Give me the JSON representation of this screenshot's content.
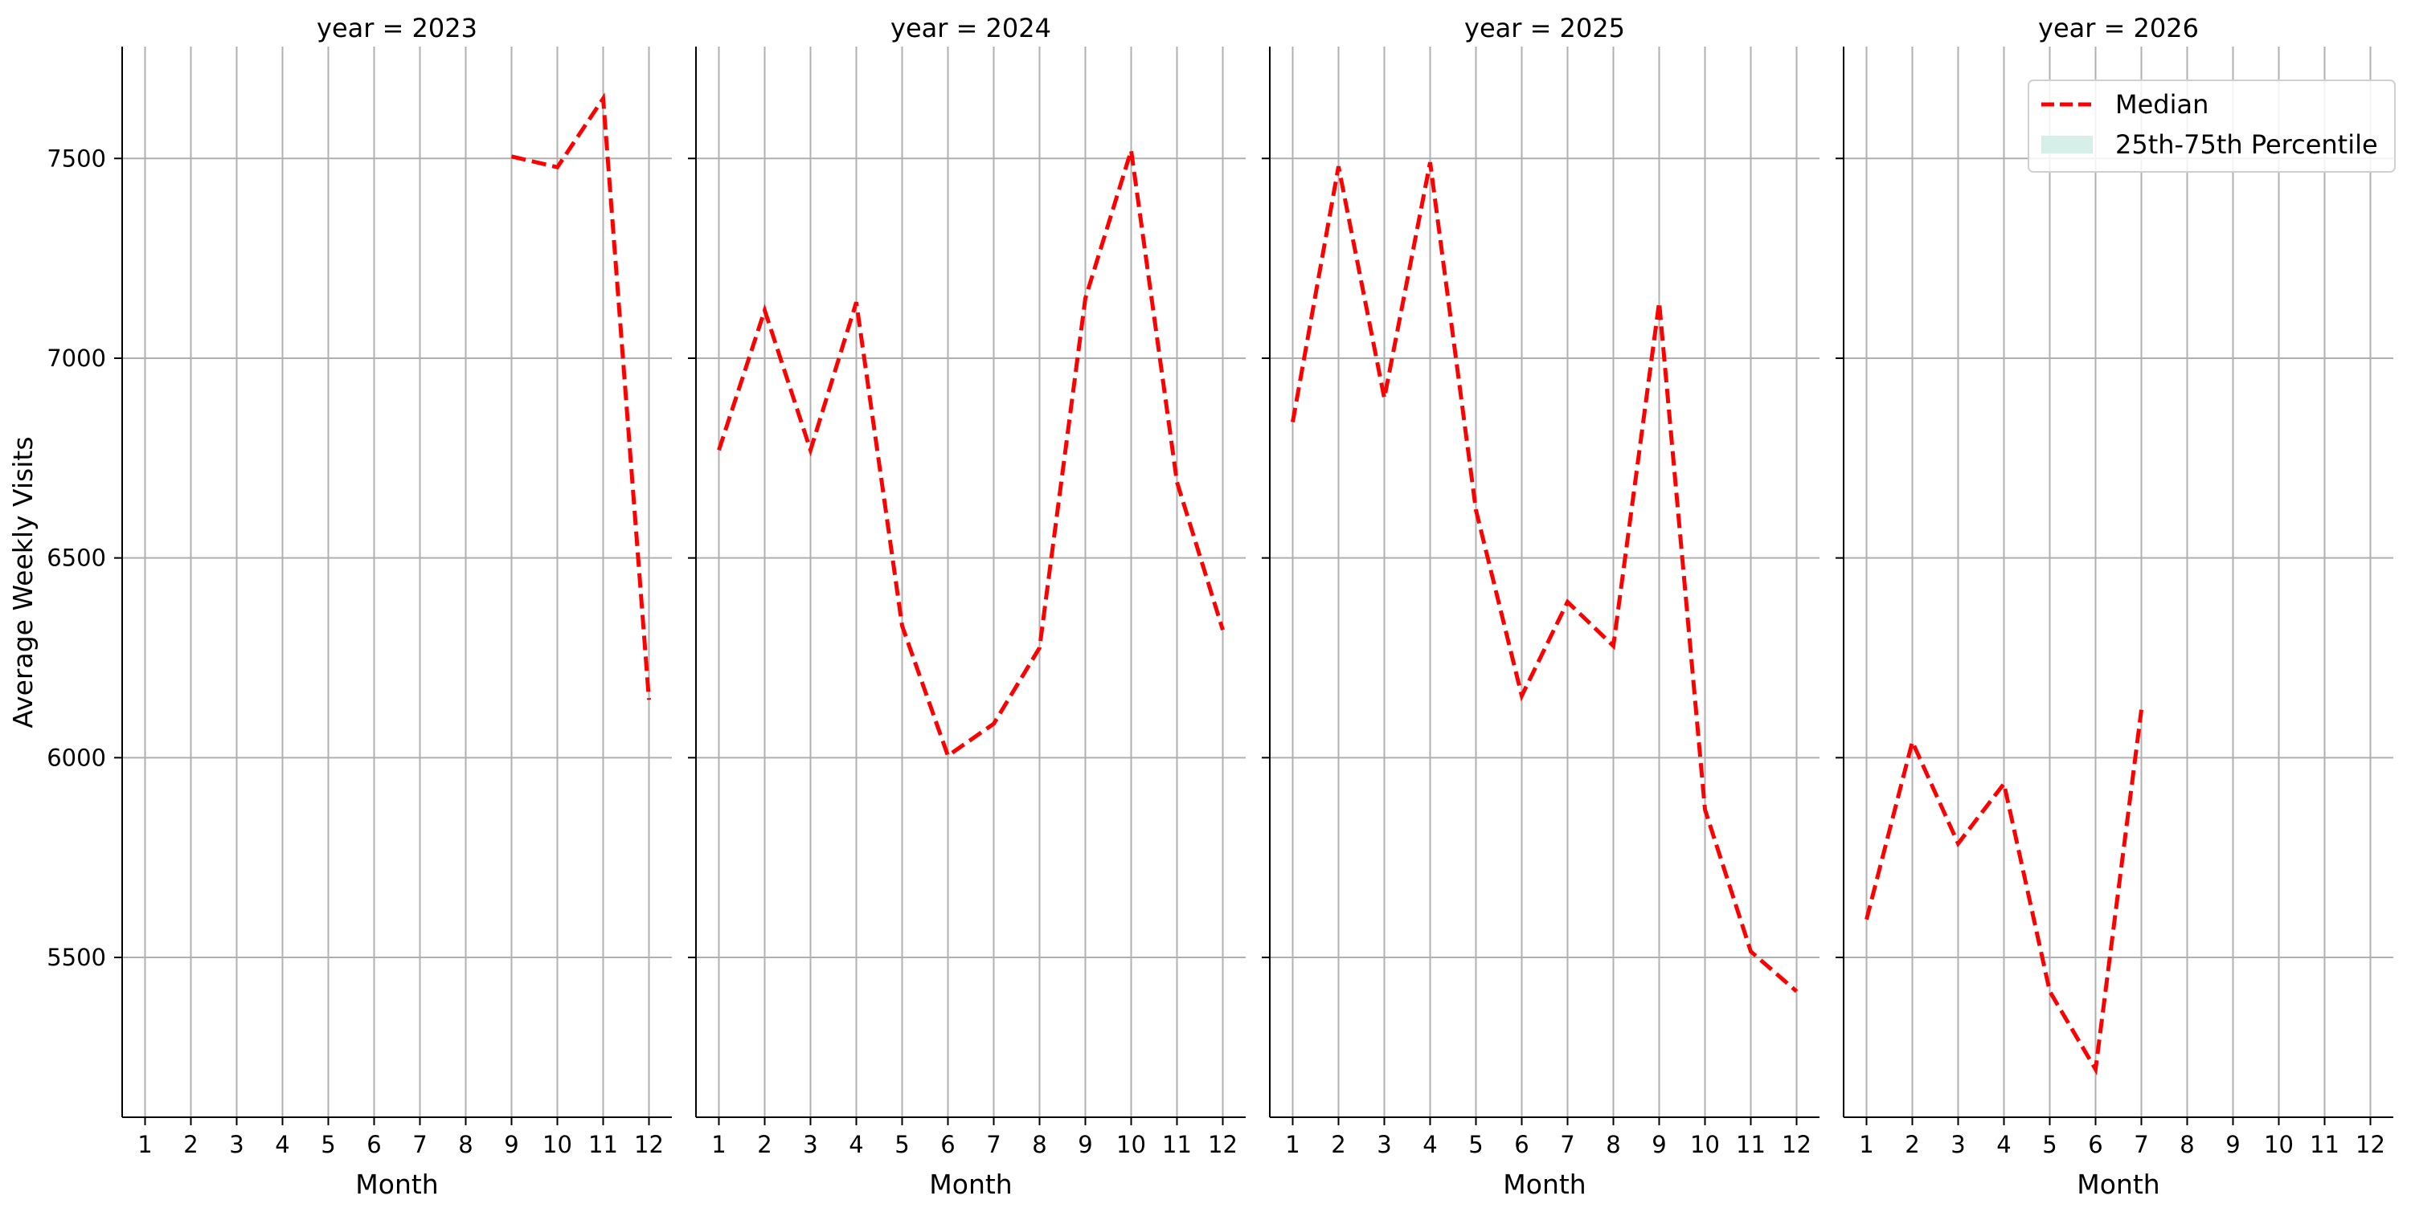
{
  "chart_data": {
    "type": "line",
    "ylabel": "Average Weekly Visits",
    "xlabel": "Month",
    "ylim": [
      5100,
      7780
    ],
    "yticks": [
      5500,
      6000,
      6500,
      7000,
      7500
    ],
    "xticks": [
      1,
      2,
      3,
      4,
      5,
      6,
      7,
      8,
      9,
      10,
      11,
      12
    ],
    "xlim": [
      0.5,
      12.5
    ],
    "grid": true,
    "legend": {
      "placement": "top-right of last panel",
      "entries": [
        {
          "label": "Median",
          "style": "dashed-line",
          "color": "#ff0000"
        },
        {
          "label": "25th-75th Percentile",
          "style": "filled-patch",
          "color": "#d6efe8"
        }
      ]
    },
    "panels": [
      {
        "title": "year = 2023",
        "series": [
          {
            "x": [
              9,
              10,
              11,
              12
            ],
            "y": [
              7505,
              7478,
              7650,
              6145
            ]
          }
        ]
      },
      {
        "title": "year = 2024",
        "series": [
          {
            "x": [
              1,
              2,
              3,
              4,
              5,
              6,
              7,
              8,
              9,
              10,
              11,
              12
            ],
            "y": [
              6770,
              7120,
              6770,
              7140,
              6330,
              6005,
              6085,
              6275,
              7150,
              7520,
              6690,
              6320
            ]
          }
        ]
      },
      {
        "title": "year = 2025",
        "series": [
          {
            "x": [
              1,
              2,
              3,
              4,
              5,
              6,
              7,
              8,
              9,
              10,
              11,
              12
            ],
            "y": [
              6840,
              7480,
              6900,
              7490,
              6620,
              6155,
              6390,
              6280,
              7140,
              5870,
              5515,
              5415
            ]
          }
        ]
      },
      {
        "title": "year = 2026",
        "series": [
          {
            "x": [
              1,
              2,
              3,
              4,
              5,
              6,
              7
            ],
            "y": [
              5595,
              6040,
              5785,
              5935,
              5415,
              5220,
              6120
            ]
          }
        ]
      }
    ],
    "colors": {
      "median": "#ff0000",
      "percentile_band": "#d6efe8",
      "grid": "#b0b0b0"
    }
  }
}
